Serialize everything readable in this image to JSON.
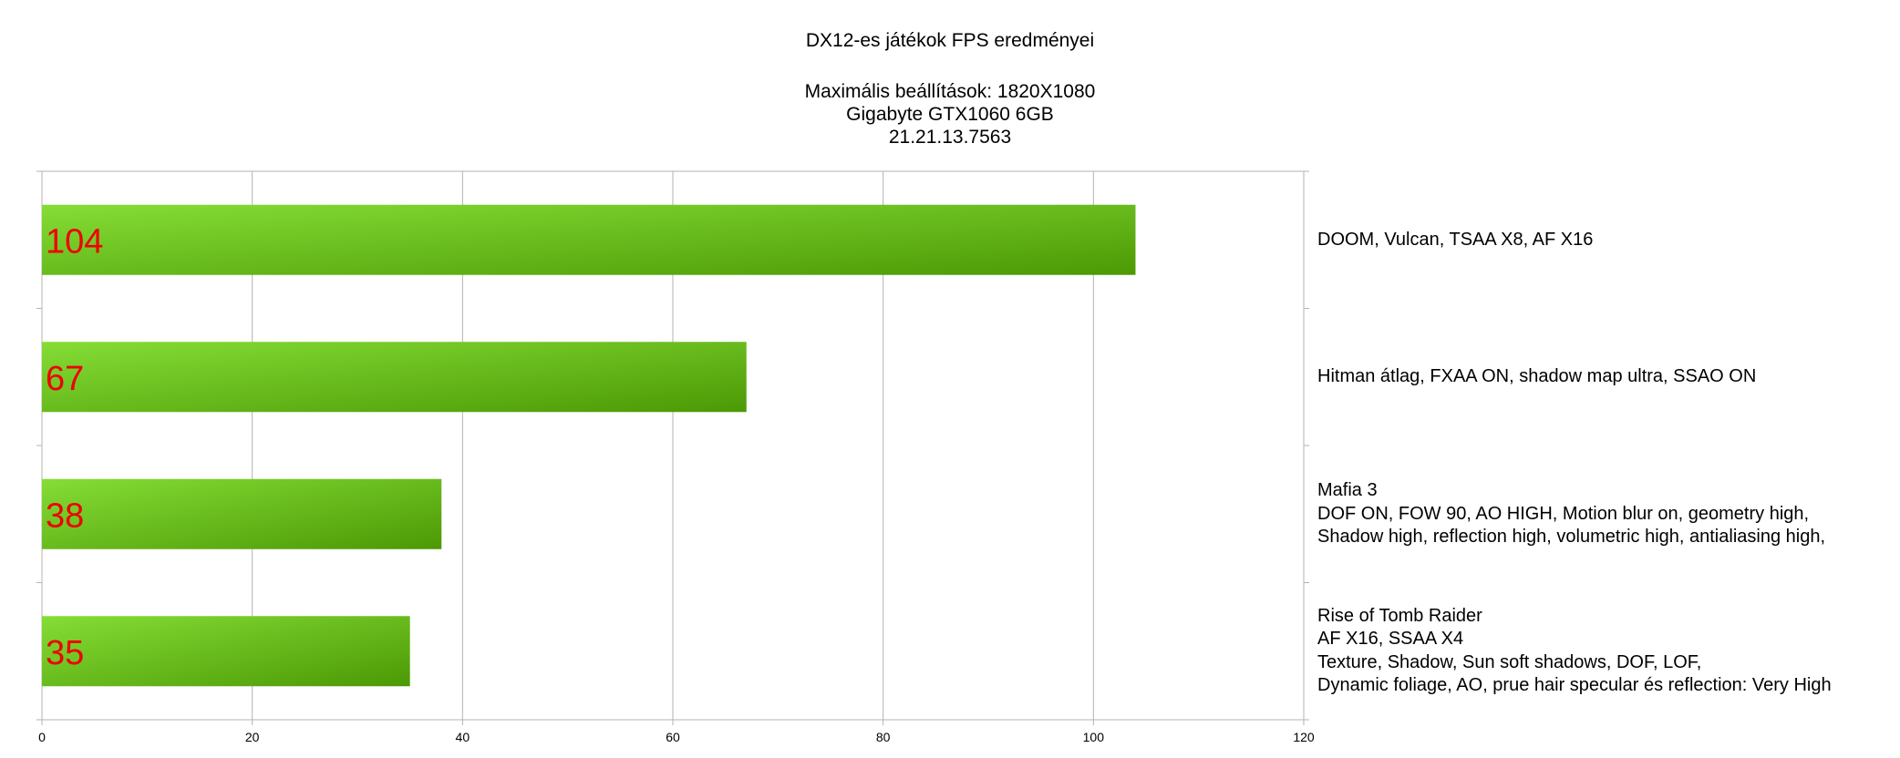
{
  "chart_data": {
    "type": "bar",
    "orientation": "horizontal",
    "title": "DX12-es játékok FPS eredményei",
    "subtitle_lines": [
      "Maximális beállítások: 1820X1080",
      "Gigabyte GTX1060 6GB",
      "21.21.13.7563"
    ],
    "xlim": [
      0,
      120
    ],
    "xticks": [
      "0",
      "20",
      "40",
      "60",
      "80",
      "100",
      "120"
    ],
    "grid": "vertical",
    "legend": "none",
    "bar_color_from": "#85dd35",
    "bar_color_to": "#4c9905",
    "value_label_color": "#ee0000",
    "categories": [
      [
        "DOOM, Vulcan, TSAA X8, AF X16"
      ],
      [
        "Hitman átlag, FXAA ON, shadow map ultra, SSAO ON"
      ],
      [
        "Mafia 3",
        "DOF ON, FOW 90, AO HIGH, Motion blur on, geometry high,",
        "Shadow high, reflection high, volumetric high, antialiasing high,"
      ],
      [
        "Rise of Tomb Raider",
        "AF X16, SSAA X4",
        "Texture, Shadow, Sun soft shadows, DOF, LOF,",
        "Dynamic foliage, AO, prue hair specular és reflection: Very High"
      ]
    ],
    "values": [
      104,
      67,
      38,
      35
    ],
    "value_labels": [
      "104",
      "67",
      "38",
      "35"
    ]
  }
}
